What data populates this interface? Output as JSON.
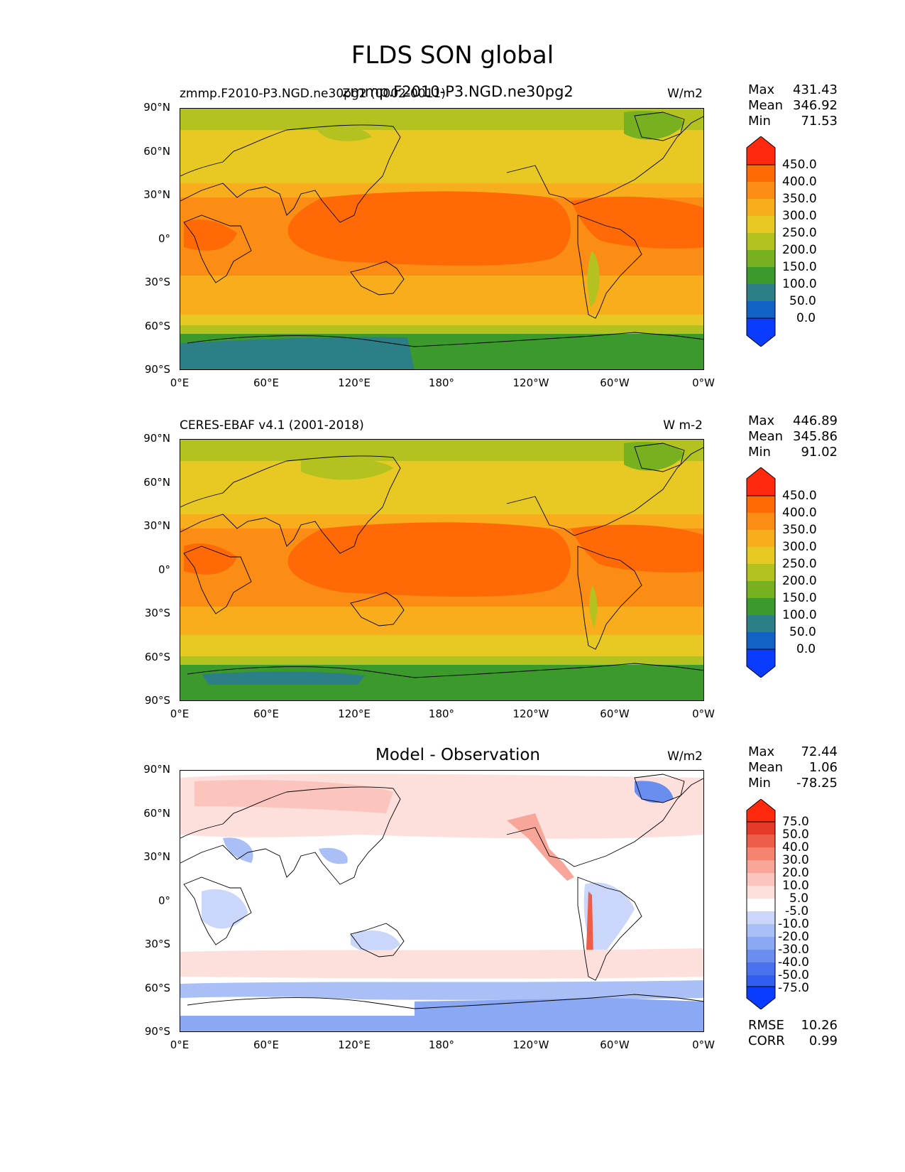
{
  "figure": {
    "title": "FLDS SON global"
  },
  "panels": [
    {
      "id": "model",
      "left_label": "zmmp.F2010-P3.NGD.ne30pg2 (0002-0011)",
      "center_label": "zmmp.F2010-P3.NGD.ne30pg2",
      "right_label": "W/m2",
      "stats": [
        {
          "key": "Max",
          "value": "431.43"
        },
        {
          "key": "Mean",
          "value": "346.92"
        },
        {
          "key": "Min",
          "value": "71.53"
        }
      ],
      "colorbar_labels": [
        "450.0",
        "400.0",
        "350.0",
        "300.0",
        "250.0",
        "200.0",
        "150.0",
        "100.0",
        "50.0",
        "0.0"
      ]
    },
    {
      "id": "obs",
      "left_label": "CERES-EBAF v4.1 (2001-2018)",
      "center_label": "",
      "right_label": "W m-2",
      "stats": [
        {
          "key": "Max",
          "value": "446.89"
        },
        {
          "key": "Mean",
          "value": "345.86"
        },
        {
          "key": "Min",
          "value": "91.02"
        }
      ],
      "colorbar_labels": [
        "450.0",
        "400.0",
        "350.0",
        "300.0",
        "250.0",
        "200.0",
        "150.0",
        "100.0",
        "50.0",
        "0.0"
      ]
    },
    {
      "id": "diff",
      "left_label": "",
      "center_label": "Model - Observation",
      "right_label": "W/m2",
      "stats": [
        {
          "key": "Max",
          "value": "72.44"
        },
        {
          "key": "Mean",
          "value": "1.06"
        },
        {
          "key": "Min",
          "value": "-78.25"
        }
      ],
      "extra_stats": [
        {
          "key": "RMSE",
          "value": "10.26"
        },
        {
          "key": "CORR",
          "value": "0.99"
        }
      ],
      "colorbar_labels": [
        "75.0",
        "50.0",
        "40.0",
        "30.0",
        "20.0",
        "10.0",
        "5.0",
        "-5.0",
        "-10.0",
        "-20.0",
        "-30.0",
        "-40.0",
        "-50.0",
        "-75.0"
      ]
    }
  ],
  "axes": {
    "lat_ticks": [
      "90°N",
      "60°N",
      "30°N",
      "0°",
      "30°S",
      "60°S",
      "90°S"
    ],
    "lon_ticks": [
      "0°E",
      "60°E",
      "120°E",
      "180°",
      "120°W",
      "60°W",
      "0°W"
    ]
  },
  "chart_data": [
    {
      "type": "heatmap",
      "title": "zmmp.F2010-P3.NGD.ne30pg2",
      "variable": "FLDS",
      "season": "SON",
      "units": "W/m2",
      "projection": "PlateCarree",
      "xlim": [
        0,
        360
      ],
      "ylim": [
        -90,
        90
      ],
      "levels": [
        0,
        50,
        100,
        150,
        200,
        250,
        300,
        350,
        400,
        450
      ],
      "colormap": [
        "#0a3cff",
        "#1262c6",
        "#2c7f86",
        "#3b9a2b",
        "#78b11f",
        "#b3c21e",
        "#e8c923",
        "#f8ad1c",
        "#fb8d14",
        "#ff6a06",
        "#ff2a0e"
      ],
      "lat_band_values": [
        {
          "lat": 85,
          "value": 215
        },
        {
          "lat": 60,
          "value": 270
        },
        {
          "lat": 45,
          "value": 290
        },
        {
          "lat": 30,
          "value": 340
        },
        {
          "lat": 15,
          "value": 385
        },
        {
          "lat": 0,
          "value": 405
        },
        {
          "lat": -15,
          "value": 390
        },
        {
          "lat": -30,
          "value": 355
        },
        {
          "lat": -45,
          "value": 320
        },
        {
          "lat": -55,
          "value": 290
        },
        {
          "lat": -65,
          "value": 245
        },
        {
          "lat": -75,
          "value": 160
        },
        {
          "lat": -85,
          "value": 115
        }
      ],
      "stats": {
        "max": 431.43,
        "mean": 346.92,
        "min": 71.53
      }
    },
    {
      "type": "heatmap",
      "title": "CERES-EBAF v4.1 (2001-2018)",
      "variable": "FLDS",
      "season": "SON",
      "units": "W m-2",
      "xlim": [
        0,
        360
      ],
      "ylim": [
        -90,
        90
      ],
      "levels": [
        0,
        50,
        100,
        150,
        200,
        250,
        300,
        350,
        400,
        450
      ],
      "lat_band_values": [
        {
          "lat": 85,
          "value": 225
        },
        {
          "lat": 60,
          "value": 265
        },
        {
          "lat": 45,
          "value": 285
        },
        {
          "lat": 30,
          "value": 335
        },
        {
          "lat": 15,
          "value": 385
        },
        {
          "lat": 0,
          "value": 405
        },
        {
          "lat": -15,
          "value": 390
        },
        {
          "lat": -30,
          "value": 350
        },
        {
          "lat": -45,
          "value": 310
        },
        {
          "lat": -55,
          "value": 280
        },
        {
          "lat": -65,
          "value": 240
        },
        {
          "lat": -75,
          "value": 165
        },
        {
          "lat": -85,
          "value": 140
        }
      ],
      "stats": {
        "max": 446.89,
        "mean": 345.86,
        "min": 91.02
      }
    },
    {
      "type": "heatmap",
      "title": "Model - Observation",
      "variable": "FLDS",
      "season": "SON",
      "units": "W/m2",
      "xlim": [
        0,
        360
      ],
      "ylim": [
        -90,
        90
      ],
      "levels": [
        -75,
        -50,
        -40,
        -30,
        -20,
        -10,
        -5,
        5,
        10,
        20,
        30,
        40,
        50,
        75
      ],
      "colormap": [
        "#0a3cff",
        "#2f5ef0",
        "#4a72ee",
        "#6a8ef0",
        "#8aa8f3",
        "#aabff6",
        "#cad6fa",
        "#ffffff",
        "#fde0dc",
        "#fbc4bc",
        "#f8a699",
        "#f4836f",
        "#ee5d48",
        "#e43a27",
        "#ff2a0e"
      ],
      "lat_band_values": [
        {
          "lat": 85,
          "value": 12
        },
        {
          "lat": 70,
          "value": 15
        },
        {
          "lat": 55,
          "value": 7
        },
        {
          "lat": 35,
          "value": 3
        },
        {
          "lat": 15,
          "value": 0
        },
        {
          "lat": 0,
          "value": 2
        },
        {
          "lat": -15,
          "value": -2
        },
        {
          "lat": -35,
          "value": 4
        },
        {
          "lat": -50,
          "value": 8
        },
        {
          "lat": -62,
          "value": -12
        },
        {
          "lat": -70,
          "value": -20
        },
        {
          "lat": -80,
          "value": -8
        },
        {
          "lat": -87,
          "value": -22
        }
      ],
      "stats": {
        "max": 72.44,
        "mean": 1.06,
        "min": -78.25,
        "rmse": 10.26,
        "corr": 0.99
      }
    }
  ]
}
